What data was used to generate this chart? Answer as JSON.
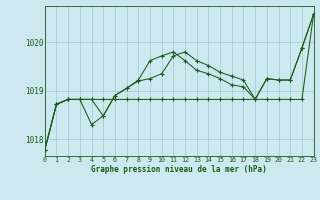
{
  "title": "Graphe pression niveau de la mer (hPa)",
  "background_color": "#cde8ee",
  "grid_color": "#a0c8cc",
  "line_color": "#1a5c1a",
  "xlim": [
    0,
    23
  ],
  "ylim": [
    1017.65,
    1020.75
  ],
  "yticks": [
    1018,
    1019,
    1020
  ],
  "xticks": [
    0,
    1,
    2,
    3,
    4,
    5,
    6,
    7,
    8,
    9,
    10,
    11,
    12,
    13,
    14,
    15,
    16,
    17,
    18,
    19,
    20,
    21,
    22,
    23
  ],
  "series": {
    "line1": [
      1017.78,
      1018.72,
      1018.82,
      1018.82,
      1018.82,
      1018.82,
      1018.82,
      1018.82,
      1018.82,
      1018.82,
      1018.82,
      1018.82,
      1018.82,
      1018.82,
      1018.82,
      1018.82,
      1018.82,
      1018.82,
      1018.82,
      1018.82,
      1018.82,
      1018.82,
      1018.82,
      1020.58
    ],
    "line2": [
      1017.78,
      1018.72,
      1018.82,
      1018.82,
      1018.82,
      1018.48,
      1018.9,
      1019.05,
      1019.2,
      1019.25,
      1019.35,
      1019.72,
      1019.8,
      1019.62,
      1019.52,
      1019.38,
      1019.3,
      1019.22,
      1018.82,
      1019.25,
      1019.22,
      1019.22,
      1019.88,
      1020.58
    ],
    "line3": [
      1017.78,
      1018.72,
      1018.82,
      1018.82,
      1018.3,
      1018.48,
      1018.9,
      1019.05,
      1019.22,
      1019.62,
      1019.72,
      1019.8,
      1019.62,
      1019.42,
      1019.35,
      1019.25,
      1019.12,
      1019.08,
      1018.82,
      1019.25,
      1019.22,
      1019.22,
      1019.88,
      1020.58
    ]
  }
}
